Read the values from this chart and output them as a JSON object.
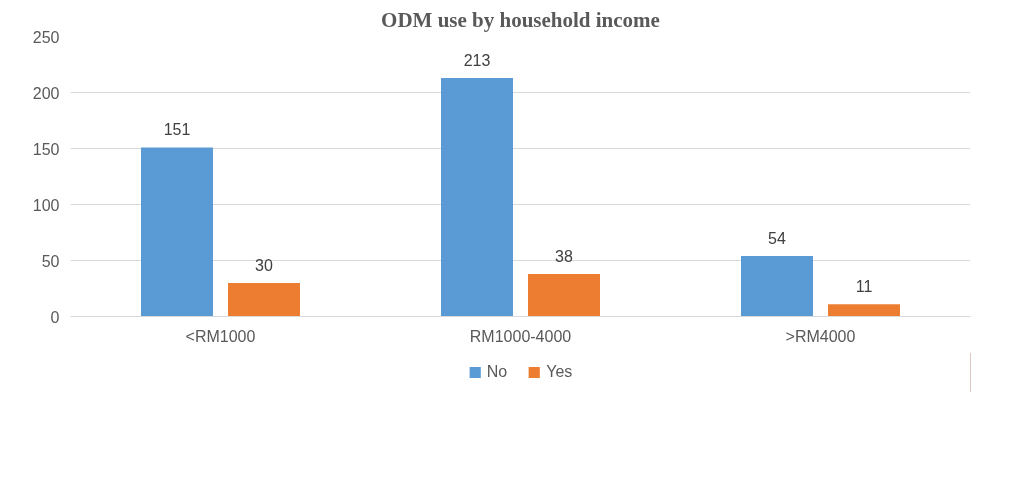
{
  "chart_data": {
    "type": "bar",
    "title": "ODM use by household income",
    "categories": [
      "<RM1000",
      "RM1000-4000",
      ">RM4000"
    ],
    "series": [
      {
        "name": "No",
        "color": "#5b9bd5",
        "values": [
          151,
          213,
          54
        ]
      },
      {
        "name": "Yes",
        "color": "#ed7d31",
        "values": [
          30,
          38,
          11
        ]
      }
    ],
    "ylim": [
      0,
      250
    ],
    "yticks": [
      0,
      50,
      100,
      150,
      200,
      250
    ],
    "grid": "y",
    "legend": "bottom",
    "data_labels": true
  }
}
